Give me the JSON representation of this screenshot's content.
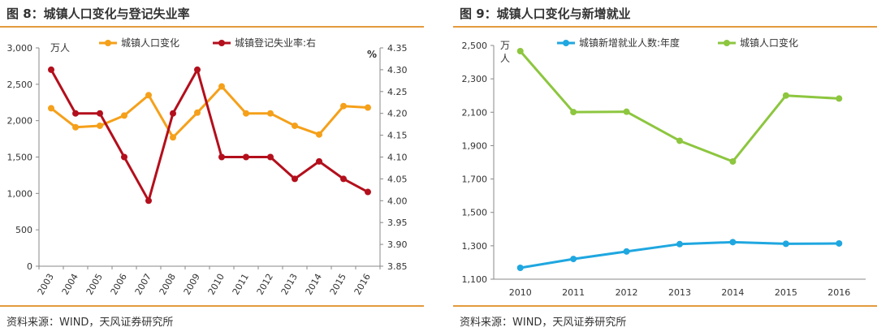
{
  "figure8": {
    "title": "图 8：城镇人口变化与登记失业率",
    "source": "资料来源：WIND，天风证券研究所",
    "chart_data": {
      "type": "line",
      "categories": [
        "2003",
        "2004",
        "2005",
        "2006",
        "2007",
        "2008",
        "2009",
        "2010",
        "2011",
        "2012",
        "2013",
        "2014",
        "2015",
        "2016"
      ],
      "series": [
        {
          "name": "城镇人口变化",
          "axis": "left",
          "color": "#f5a01a",
          "values": [
            2170,
            1910,
            1930,
            2070,
            2350,
            1770,
            2110,
            2470,
            2100,
            2100,
            1930,
            1810,
            2200,
            2180
          ]
        },
        {
          "name": "城镇登记失业率:右",
          "axis": "right",
          "color": "#b30f1c",
          "values": [
            4.3,
            4.2,
            4.2,
            4.1,
            4.0,
            4.2,
            4.3,
            4.1,
            4.1,
            4.1,
            4.05,
            4.09,
            4.05,
            4.02
          ]
        }
      ],
      "left_axis": {
        "unit": "万人",
        "ylim": [
          0,
          3000
        ],
        "ticks": [
          "0",
          "500",
          "1,000",
          "1,500",
          "2,000",
          "2,500",
          "3,000"
        ]
      },
      "right_axis": {
        "unit": "%",
        "ylim": [
          3.85,
          4.35
        ],
        "ticks": [
          "3.85",
          "3.90",
          "3.95",
          "4.00",
          "4.05",
          "4.10",
          "4.15",
          "4.20",
          "4.25",
          "4.30",
          "4.35"
        ]
      },
      "legend": "top",
      "grid": false
    }
  },
  "figure9": {
    "title": "图 9：城镇人口变化与新增就业",
    "source": "资料来源：WIND，天风证券研究所",
    "chart_data": {
      "type": "line",
      "categories": [
        "2010",
        "2011",
        "2012",
        "2013",
        "2014",
        "2015",
        "2016"
      ],
      "series": [
        {
          "name": "城镇新增就业人数:年度",
          "color": "#1fa7e0",
          "values": [
            1168,
            1221,
            1266,
            1310,
            1322,
            1312,
            1314
          ]
        },
        {
          "name": "城镇人口变化",
          "color": "#8dc63f",
          "values": [
            2466,
            2101,
            2103,
            1929,
            1805,
            2200,
            2182
          ]
        }
      ],
      "y_axis": {
        "unit": "万人",
        "ylim": [
          1100,
          2500
        ],
        "ticks": [
          "1,100",
          "1,300",
          "1,500",
          "1,700",
          "1,900",
          "2,100",
          "2,300",
          "2,500"
        ]
      },
      "legend": "top",
      "grid": false
    }
  }
}
